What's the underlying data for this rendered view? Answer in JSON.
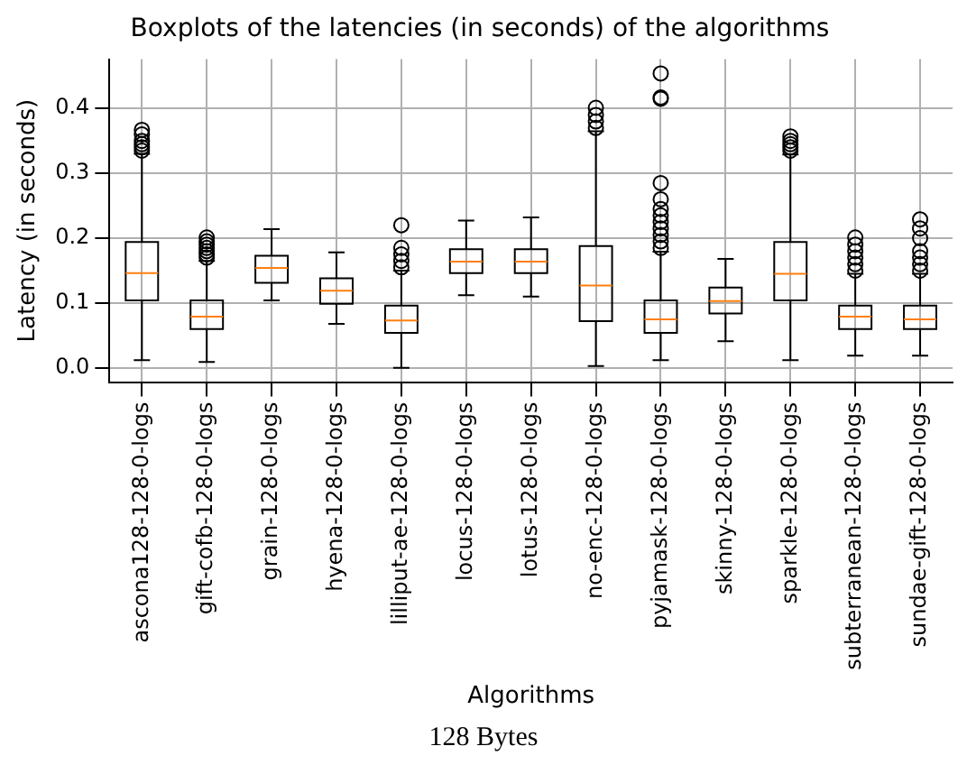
{
  "chart_data": {
    "type": "box",
    "title": "Boxplots of the latencies (in seconds) of the algorithms",
    "xlabel": "Algorithms",
    "ylabel": "Latency (in seconds)",
    "categories": [
      "ascona128-128-0-logs",
      "gift-cofb-128-0-logs",
      "grain-128-0-logs",
      "hyena-128-0-logs",
      "lilliput-ae-128-0-logs",
      "locus-128-0-logs",
      "lotus-128-0-logs",
      "no-enc-128-0-logs",
      "pyjamask-128-0-logs",
      "skinny-128-0-logs",
      "sparkle-128-0-logs",
      "subterranean-128-0-logs",
      "sundae-gift-128-0-logs"
    ],
    "boxes": [
      {
        "low": 0.012,
        "q1": 0.104,
        "median": 0.146,
        "q3": 0.194,
        "high": 0.33,
        "outliers": [
          0.335,
          0.34,
          0.345,
          0.35,
          0.36,
          0.367
        ]
      },
      {
        "low": 0.009,
        "q1": 0.06,
        "median": 0.079,
        "q3": 0.104,
        "high": 0.165,
        "outliers": [
          0.17,
          0.175,
          0.18,
          0.185,
          0.19,
          0.195,
          0.201
        ]
      },
      {
        "low": 0.104,
        "q1": 0.131,
        "median": 0.154,
        "q3": 0.173,
        "high": 0.214
      },
      {
        "low": 0.068,
        "q1": 0.099,
        "median": 0.119,
        "q3": 0.138,
        "high": 0.178
      },
      {
        "low": 0.0,
        "q1": 0.054,
        "median": 0.073,
        "q3": 0.096,
        "high": 0.15,
        "outliers": [
          0.155,
          0.165,
          0.175,
          0.185,
          0.22
        ]
      },
      {
        "low": 0.112,
        "q1": 0.146,
        "median": 0.164,
        "q3": 0.183,
        "high": 0.227
      },
      {
        "low": 0.11,
        "q1": 0.146,
        "median": 0.164,
        "q3": 0.183,
        "high": 0.232
      },
      {
        "low": 0.003,
        "q1": 0.072,
        "median": 0.127,
        "q3": 0.188,
        "high": 0.365,
        "outliers": [
          0.37,
          0.38,
          0.39,
          0.401
        ]
      },
      {
        "low": 0.012,
        "q1": 0.054,
        "median": 0.075,
        "q3": 0.104,
        "high": 0.179,
        "outliers": [
          0.185,
          0.195,
          0.205,
          0.215,
          0.225,
          0.235,
          0.245,
          0.26,
          0.285,
          0.415,
          0.417,
          0.454
        ]
      },
      {
        "low": 0.041,
        "q1": 0.084,
        "median": 0.103,
        "q3": 0.124,
        "high": 0.168
      },
      {
        "low": 0.012,
        "q1": 0.104,
        "median": 0.145,
        "q3": 0.194,
        "high": 0.329,
        "outliers": [
          0.335,
          0.34,
          0.345,
          0.35,
          0.357
        ]
      },
      {
        "low": 0.019,
        "q1": 0.06,
        "median": 0.079,
        "q3": 0.096,
        "high": 0.145,
        "outliers": [
          0.15,
          0.16,
          0.17,
          0.18,
          0.19,
          0.201
        ]
      },
      {
        "low": 0.019,
        "q1": 0.06,
        "median": 0.075,
        "q3": 0.096,
        "high": 0.145,
        "outliers": [
          0.15,
          0.16,
          0.17,
          0.18,
          0.2,
          0.215,
          0.229
        ]
      }
    ],
    "ylim": [
      -0.022,
      0.476
    ],
    "yticks": [
      {
        "value": 0,
        "label": "0.0"
      },
      {
        "value": 0.1,
        "label": "0.1"
      },
      {
        "value": 0.2,
        "label": "0.2"
      },
      {
        "value": 0.3,
        "label": "0.3"
      },
      {
        "value": 0.4,
        "label": "0.4"
      }
    ],
    "grid": true,
    "annotations": [
      "128 Bytes"
    ]
  }
}
